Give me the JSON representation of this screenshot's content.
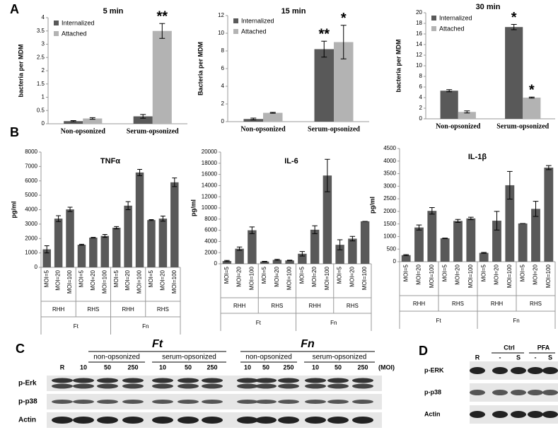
{
  "panel_labels": [
    "A",
    "B"
  ],
  "chart_data": [
    {
      "type": "bar",
      "title": "5 min",
      "ylabel": "bacteria per MDM",
      "legend": "upper left",
      "categories": [
        "Non-opsonized",
        "Serum-opsonized"
      ],
      "series": [
        {
          "name": "Internalized",
          "color": "#595959",
          "values": [
            0.1,
            0.28
          ],
          "errors": [
            0.02,
            0.07
          ]
        },
        {
          "name": "Attached",
          "color": "#b3b3b3",
          "values": [
            0.2,
            3.5
          ],
          "errors": [
            0.03,
            0.28
          ]
        }
      ],
      "ylim": [
        0,
        4
      ],
      "yticks": [
        0,
        0.5,
        1,
        1.5,
        2,
        2.5,
        3,
        3.5,
        4
      ],
      "annotations": [
        "**"
      ]
    },
    {
      "type": "bar",
      "title": "15 min",
      "ylabel": "Bacteria per MDM",
      "legend": "upper left",
      "categories": [
        "Non-opsonized",
        "Serum-opsonized"
      ],
      "series": [
        {
          "name": "Internalized",
          "color": "#595959",
          "values": [
            0.3,
            8.2
          ],
          "errors": [
            0.1,
            0.9
          ]
        },
        {
          "name": "Attached",
          "color": "#b3b3b3",
          "values": [
            1.0,
            9.0
          ],
          "errors": [
            0.05,
            1.9
          ]
        }
      ],
      "ylim": [
        0,
        12
      ],
      "yticks": [
        0,
        2,
        4,
        6,
        8,
        10,
        12
      ],
      "annotations": [
        "**",
        "*"
      ]
    },
    {
      "type": "bar",
      "title": "30 min",
      "ylabel": "bacteria per MDM",
      "legend": "upper left",
      "categories": [
        "Non-opsonized",
        "Serum-opsonized"
      ],
      "series": [
        {
          "name": "Internalized",
          "color": "#595959",
          "values": [
            5.3,
            17.3
          ],
          "errors": [
            0.2,
            0.5
          ]
        },
        {
          "name": "Attached",
          "color": "#b3b3b3",
          "values": [
            1.3,
            4.0
          ],
          "errors": [
            0.2,
            0.1
          ]
        }
      ],
      "ylim": [
        0,
        20
      ],
      "yticks": [
        0,
        2,
        4,
        6,
        8,
        10,
        12,
        14,
        16,
        18,
        20
      ],
      "annotations": [
        "*",
        "*"
      ]
    },
    {
      "type": "bar",
      "title": "TNFα",
      "ylabel": "pg/ml",
      "color": "#595959",
      "categories": [
        "MOI=5",
        "MOI=20",
        "MOI=100",
        "MOI=5",
        "MOI=20",
        "MOI=100",
        "MOI=5",
        "MOI=20",
        "MOI=100",
        "MOI=5",
        "MOI=20",
        "MOI=100"
      ],
      "values": [
        1250,
        3380,
        4020,
        1570,
        2060,
        2180,
        2750,
        4280,
        6580,
        3280,
        3380,
        5900
      ],
      "errors": [
        250,
        200,
        150,
        30,
        20,
        100,
        80,
        280,
        220,
        30,
        180,
        300
      ],
      "subgroups": [
        "RHH",
        "RHS",
        "RHH",
        "RHS"
      ],
      "groups": [
        "Ft",
        "Fn"
      ],
      "ylim": [
        0,
        8000
      ],
      "yticks": [
        0,
        1000,
        2000,
        3000,
        4000,
        5000,
        6000,
        7000,
        8000
      ]
    },
    {
      "type": "bar",
      "title": "IL-6",
      "ylabel": "pg/ml",
      "color": "#595959",
      "categories": [
        "MOI=5",
        "MOI=20",
        "MOI=100",
        "MOI=5",
        "MOI=20",
        "MOI=100",
        "MOI=5",
        "MOI=20",
        "MOI=100",
        "MOI=5",
        "MOI=20",
        "MOI=100"
      ],
      "values": [
        500,
        2700,
        6000,
        400,
        700,
        600,
        1800,
        6100,
        15800,
        3400,
        4500,
        7600
      ],
      "errors": [
        100,
        300,
        600,
        50,
        100,
        50,
        400,
        700,
        2900,
        900,
        400,
        0
      ],
      "subgroups": [
        "RHH",
        "RHS",
        "RHH",
        "RHS"
      ],
      "groups": [
        "Ft",
        "Fn"
      ],
      "ylim": [
        0,
        20000
      ],
      "yticks": [
        0,
        2000,
        4000,
        6000,
        8000,
        10000,
        12000,
        14000,
        16000,
        18000,
        20000
      ]
    },
    {
      "type": "bar",
      "title": "IL-1β",
      "ylabel": "pg/ml",
      "color": "#595959",
      "categories": [
        "MOI=5",
        "MOI=20",
        "MOI=100",
        "MOI=5",
        "MOI=20",
        "MOI=100",
        "MOI=5",
        "MOI=20",
        "MOI=100",
        "MOI=5",
        "MOI=20",
        "MOI=100"
      ],
      "values": [
        260,
        1360,
        2020,
        930,
        1620,
        1720,
        350,
        1630,
        3040,
        1520,
        2100,
        3740
      ],
      "errors": [
        20,
        100,
        130,
        10,
        60,
        50,
        20,
        370,
        550,
        0,
        300,
        80
      ],
      "subgroups": [
        "RHH",
        "RHS",
        "RHH",
        "RHS"
      ],
      "groups": [
        "Ft",
        "Fn"
      ],
      "ylim": [
        0,
        4500
      ],
      "yticks": [
        0,
        500,
        1000,
        1500,
        2000,
        2500,
        3000,
        3500,
        4000,
        4500
      ]
    }
  ],
  "blot_c": {
    "label": "C",
    "treatments": [
      {
        "name": "Ft",
        "subgroups": [
          "non-opsonized",
          "serum-opsonized"
        ]
      },
      {
        "name": "Fn",
        "subgroups": [
          "non-opsonized",
          "serum-opsonized"
        ]
      }
    ],
    "lanes": [
      "R",
      "10",
      "50",
      "250",
      "10",
      "50",
      "250",
      "10",
      "50",
      "250",
      "10",
      "50",
      "250"
    ],
    "unit": "(MOI)",
    "rows": [
      "p-Erk",
      "p-p38",
      "Actin"
    ]
  },
  "blot_d": {
    "label": "D",
    "groups": [
      "Ctrl",
      "PFA"
    ],
    "lanes": [
      "R",
      "-",
      "S",
      "-",
      "S"
    ],
    "rows": [
      "p-ERK",
      "p-p38",
      "Actin"
    ]
  }
}
